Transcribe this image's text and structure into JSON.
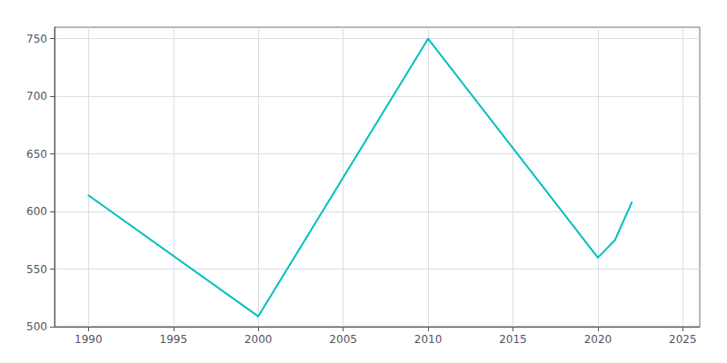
{
  "chart_data": {
    "type": "line",
    "x": [
      1990,
      2000,
      2010,
      2020,
      2021,
      2022
    ],
    "values": [
      614,
      509,
      750,
      560,
      575,
      608
    ],
    "color": "#00BFBF",
    "xlim": [
      1988,
      2026
    ],
    "ylim": [
      500,
      760
    ],
    "xticks": [
      1990,
      1995,
      2000,
      2005,
      2010,
      2015,
      2020,
      2025
    ],
    "yticks": [
      500,
      550,
      600,
      650,
      700,
      750
    ],
    "grid": true
  }
}
